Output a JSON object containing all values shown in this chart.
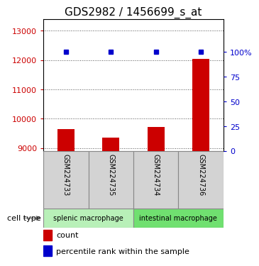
{
  "title": "GDS2982 / 1456699_s_at",
  "samples": [
    "GSM224733",
    "GSM224735",
    "GSM224734",
    "GSM224736"
  ],
  "counts": [
    9650,
    9350,
    9720,
    12050
  ],
  "percentile_ranks": [
    100,
    100,
    100,
    100
  ],
  "ylim_left": [
    8900,
    13400
  ],
  "yticks_left": [
    9000,
    10000,
    11000,
    12000,
    13000
  ],
  "ylim_right": [
    0,
    133.33
  ],
  "yticks_right": [
    0,
    25,
    50,
    75,
    100
  ],
  "ytick_labels_right": [
    "0",
    "25",
    "50",
    "75",
    "100%"
  ],
  "bar_color": "#cc0000",
  "dot_color": "#0000cc",
  "groups": [
    {
      "label": "splenic macrophage",
      "samples": [
        0,
        1
      ],
      "color": "#b8f0b8"
    },
    {
      "label": "intestinal macrophage",
      "samples": [
        2,
        3
      ],
      "color": "#70e070"
    }
  ],
  "cell_type_label": "cell type",
  "legend_count_label": "count",
  "legend_percentile_label": "percentile rank within the sample",
  "sample_box_color": "#d3d3d3",
  "left_axis_color": "#cc0000",
  "right_axis_color": "#0000cc",
  "title_fontsize": 11,
  "tick_fontsize": 8,
  "sample_fontsize": 7,
  "group_fontsize": 7,
  "legend_fontsize": 8
}
